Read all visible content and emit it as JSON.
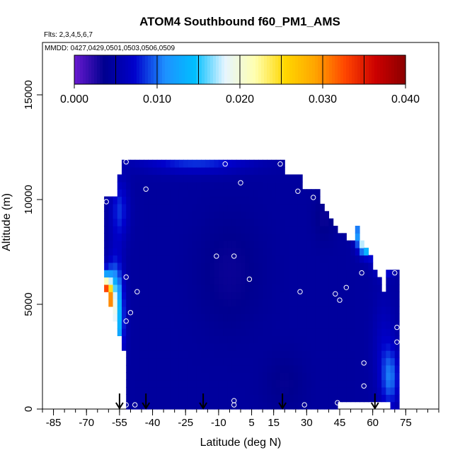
{
  "chart_data": {
    "type": "heatmap",
    "title": "ATOM4 Southbound f60_PM1_AMS",
    "flights_note": "Flts: 2,3,4,5,6,7",
    "dates_note": "MMDD: 0427,0429,0501,0503,0506,0509",
    "xlabel": "Latitude (deg N)",
    "ylabel": "Altitude (m)",
    "xlim": [
      -90,
      90
    ],
    "ylim": [
      0,
      17500
    ],
    "x_ticks": [
      -85,
      -70,
      -55,
      -40,
      -25,
      -10,
      5,
      15,
      30,
      45,
      60,
      75
    ],
    "y_ticks": [
      0,
      5000,
      10000,
      15000
    ],
    "colorbar": {
      "range": [
        0,
        0.04
      ],
      "tick_values": [
        0,
        0.01,
        0.02,
        0.03,
        0.04
      ],
      "tick_labels": [
        "0.000",
        "0.010",
        "0.020",
        "0.030",
        "0.040"
      ],
      "colors": [
        "#6a1ad0",
        "#00008f",
        "#0000cc",
        "#1e90ff",
        "#00bfff",
        "#e6f5ff",
        "#ffffb0",
        "#ffd700",
        "#ffa500",
        "#ff4500",
        "#cc0000",
        "#8b0000"
      ]
    },
    "profile_latitudes": [
      -55,
      -43,
      -17,
      19,
      61
    ],
    "sample_points": [
      {
        "lat": -52,
        "alt": 11800
      },
      {
        "lat": -7,
        "alt": 11700
      },
      {
        "lat": 18,
        "alt": 11700
      },
      {
        "lat": -43,
        "alt": 10500
      },
      {
        "lat": 0,
        "alt": 10800
      },
      {
        "lat": 26,
        "alt": 10400
      },
      {
        "lat": 33,
        "alt": 10100
      },
      {
        "lat": -61,
        "alt": 9900
      },
      {
        "lat": 40,
        "alt": 9600
      },
      {
        "lat": 59,
        "alt": 8500
      },
      {
        "lat": 60,
        "alt": 8300
      },
      {
        "lat": -11,
        "alt": 7300
      },
      {
        "lat": -3,
        "alt": 7300
      },
      {
        "lat": 55,
        "alt": 6500
      },
      {
        "lat": 70,
        "alt": 6500
      },
      {
        "lat": -52,
        "alt": 6300
      },
      {
        "lat": 4,
        "alt": 6200
      },
      {
        "lat": -47,
        "alt": 5600
      },
      {
        "lat": 27,
        "alt": 5600
      },
      {
        "lat": 48,
        "alt": 5800
      },
      {
        "lat": 43,
        "alt": 5500
      },
      {
        "lat": 45,
        "alt": 5200
      },
      {
        "lat": -50,
        "alt": 4600
      },
      {
        "lat": -52,
        "alt": 4200
      },
      {
        "lat": 71,
        "alt": 3900
      },
      {
        "lat": 71,
        "alt": 3200
      },
      {
        "lat": 56,
        "alt": 2200
      },
      {
        "lat": 56,
        "alt": 1100
      },
      {
        "lat": -3,
        "alt": 400
      },
      {
        "lat": -3,
        "alt": 200
      },
      {
        "lat": 44,
        "alt": 300
      },
      {
        "lat": 29,
        "alt": 200
      },
      {
        "lat": -52,
        "alt": 200
      },
      {
        "lat": -48,
        "alt": 200
      }
    ]
  }
}
